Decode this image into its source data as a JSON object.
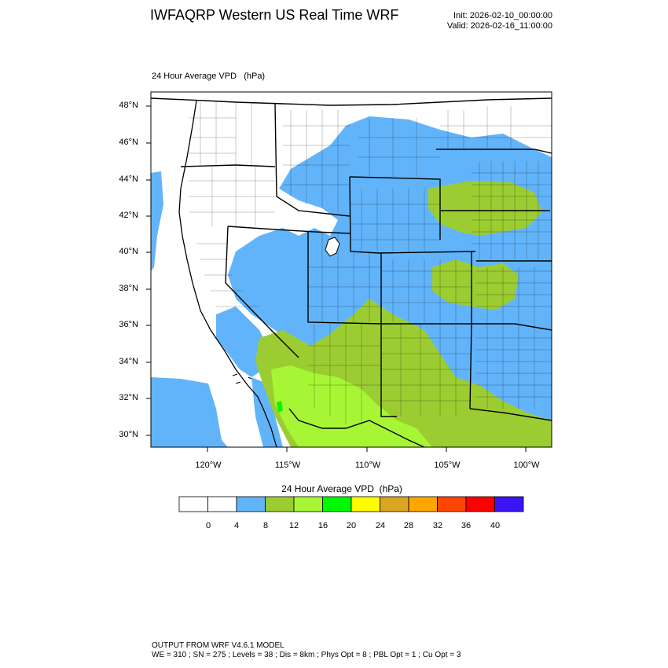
{
  "header": {
    "title": "IWFAQRP Western US Real Time WRF",
    "init": "Init: 2026-02-10_00:00:00",
    "valid": "Valid: 2026-02-16_11:00:00"
  },
  "panel": {
    "title": "24 Hour Average VPD   (hPa)"
  },
  "map": {
    "lat_ticks": [
      "48°N",
      "46°N",
      "44°N",
      "42°N",
      "40°N",
      "38°N",
      "36°N",
      "34°N",
      "32°N",
      "30°N"
    ],
    "lon_ticks": [
      "120°W",
      "115°W",
      "110°W",
      "105°W",
      "100°W"
    ],
    "colors": {
      "ocean_low": "#62b4fa",
      "land_low": "#ffffff",
      "vpd_4_8": "#62b4fa",
      "vpd_8_12": "#9bcd32",
      "vpd_12_16": "#a7f635",
      "vpd_16_20": "#00f800",
      "border": "#000000"
    }
  },
  "colorbar": {
    "title": "24 Hour Average VPD  (hPa)",
    "labels": [
      "0",
      "4",
      "8",
      "12",
      "16",
      "20",
      "24",
      "28",
      "32",
      "36",
      "40"
    ],
    "colors": [
      "#ffffff",
      "#ffffff",
      "#62b4fa",
      "#9bcd32",
      "#a7f635",
      "#00f800",
      "#fffb00",
      "#daa520",
      "#ffa500",
      "#ff4500",
      "#ff0000",
      "#3c15f5"
    ]
  },
  "footer": {
    "line1": "OUTPUT FROM WRF V4.6.1 MODEL",
    "line2": "WE = 310 ; SN = 275 ; Levels = 38 ; Dis = 8km ; Phys Opt = 8 ; PBL Opt = 1 ; Cu Opt = 3"
  }
}
